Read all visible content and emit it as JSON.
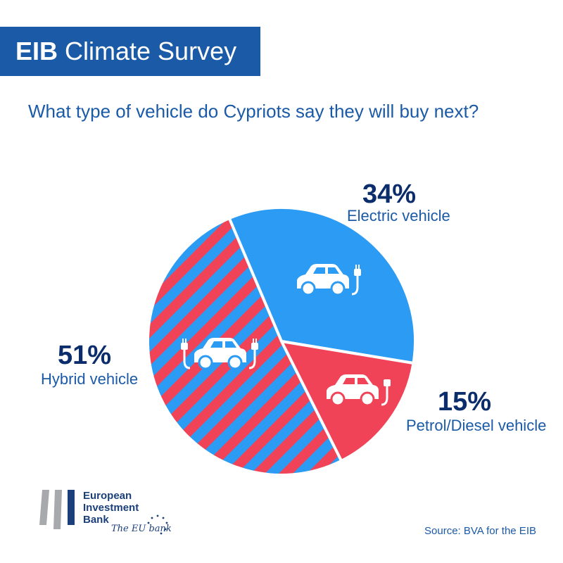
{
  "header": {
    "brand": "EIB",
    "title": "Climate Survey"
  },
  "question": "What type of vehicle do Cypriots say they will buy next?",
  "chart_data": {
    "type": "pie",
    "title": "What type of vehicle do Cypriots say they will buy next?",
    "slices": [
      {
        "label": "Electric vehicle",
        "value": 34,
        "display": "34%",
        "color": "#2b9bf4",
        "pattern": "solid",
        "icon": "electric-car-icon"
      },
      {
        "label": "Petrol/Diesel vehicle",
        "value": 15,
        "display": "15%",
        "color": "#f04358",
        "pattern": "solid",
        "icon": "petrol-car-icon"
      },
      {
        "label": "Hybrid vehicle",
        "value": 51,
        "display": "51%",
        "color": "#2b9bf4",
        "stripe_color": "#f04358",
        "pattern": "striped",
        "icon": "hybrid-car-icon"
      }
    ]
  },
  "logo": {
    "lines": [
      "European",
      "Investment",
      "Bank"
    ],
    "tagline": "The EU bank"
  },
  "source": "Source: BVA for the EIB",
  "colors": {
    "banner": "#1b5aa6",
    "text_blue": "#1b5aa6",
    "percent_navy": "#0b2d6b",
    "pie_blue": "#2b9bf4",
    "pie_red": "#f04358"
  }
}
